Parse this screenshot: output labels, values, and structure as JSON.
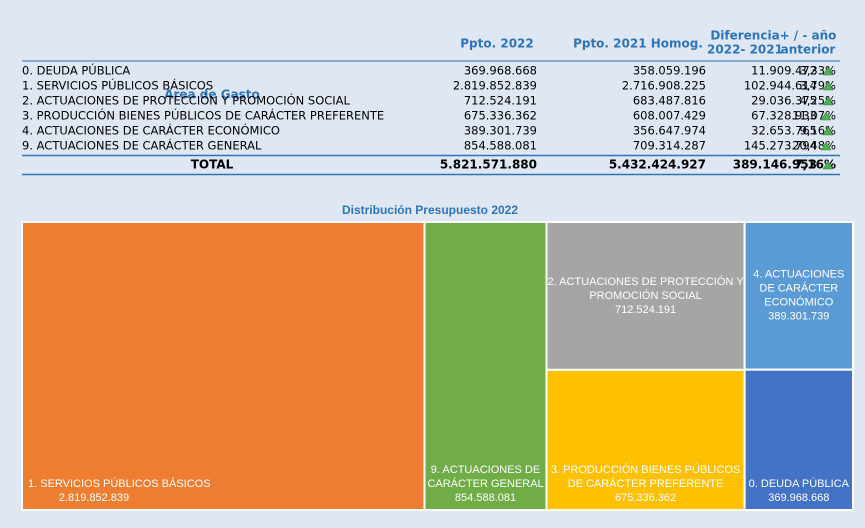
{
  "table": {
    "header": [
      [
        "Area de Gasto"
      ],
      [
        "Ppto. 2022"
      ],
      [
        "Ppto. 2021 Homog."
      ],
      [
        "Diferencia",
        "2022- 2021"
      ],
      [
        "+ / - año",
        "anterior"
      ]
    ],
    "rows": [
      [
        "0. DEUDA PÚBLICA",
        "369.968.668",
        "358.059.196",
        "11.909.472",
        "3,33%"
      ],
      [
        "1. SERVICIOS PÚBLICOS BÁSICOS",
        "2.819.852.839",
        "2.716.908.225",
        "102.944.614",
        "3,79%"
      ],
      [
        "2. ACTUACIONES DE PROTECCIÓN Y PROMOCIÓN SOCIAL",
        "712.524.191",
        "683.487.816",
        "29.036.375",
        "4,25%"
      ],
      [
        "3. PRODUCCIÓN BIENES PÚBLICOS DE CARÁCTER PREFERENTE",
        "675.336.362",
        "608.007.429",
        "67.328.933",
        "11,07%"
      ],
      [
        "4. ACTUACIONES DE CARÁCTER ECONÓMICO",
        "389.301.739",
        "356.647.974",
        "32.653.765",
        "9,16%"
      ],
      [
        "9. ACTUACIONES DE CARÁCTER GENERAL",
        "854.588.081",
        "709.314.287",
        "145.273.794",
        "20,48%"
      ]
    ],
    "total": [
      "TOTAL",
      "5.821.571.880",
      "5.432.424.927",
      "389.146.953",
      "7,16%"
    ]
  },
  "treemap": {
    "title": "Distribución Presupuesto 2022",
    "nodes": [
      {
        "label": [
          "1. SERVICIOS PÚBLICOS BÁSICOS"
        ],
        "value": 2819852839,
        "value_label": "2.819.852.839",
        "color": "#ed7d31"
      },
      {
        "label": [
          "9. ACTUACIONES DE",
          "CARÁCTER GENERAL"
        ],
        "value": 854588081,
        "value_label": "854.588.081",
        "color": "#70ad47"
      },
      {
        "label": [
          "2. ACTUACIONES DE PROTECCIÓN Y",
          "PROMOCIÓN SOCIAL"
        ],
        "value": 712524191,
        "value_label": "712.524.191",
        "color": "#a5a5a5"
      },
      {
        "label": [
          "3. PRODUCCIÓN BIENES PÚBLICOS",
          "DE CARÁCTER PREFERENTE"
        ],
        "value": 675336362,
        "value_label": "675.336.362",
        "color": "#ffc000"
      },
      {
        "label": [
          "4. ACTUACIONES",
          "DE CARÁCTER",
          "ECONÓMICO"
        ],
        "value": 389301739,
        "value_label": "389.301.739",
        "color": "#5b9bd5"
      },
      {
        "label": [
          "0. DEUDA PÚBLICA"
        ],
        "value": 369968668,
        "value_label": "369.968.668",
        "color": "#4472c4"
      }
    ]
  }
}
